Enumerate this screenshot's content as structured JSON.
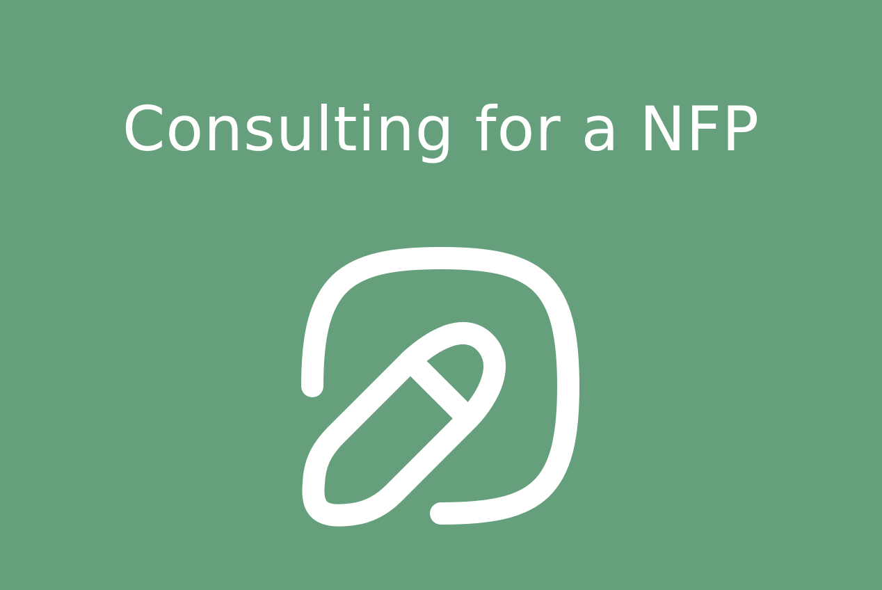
{
  "page": {
    "background_color": "#659f7b",
    "foreground_color": "#ffffff",
    "title": "Consulting for a NFP"
  },
  "icon": {
    "name": "pill-in-rounded-square-icon"
  }
}
